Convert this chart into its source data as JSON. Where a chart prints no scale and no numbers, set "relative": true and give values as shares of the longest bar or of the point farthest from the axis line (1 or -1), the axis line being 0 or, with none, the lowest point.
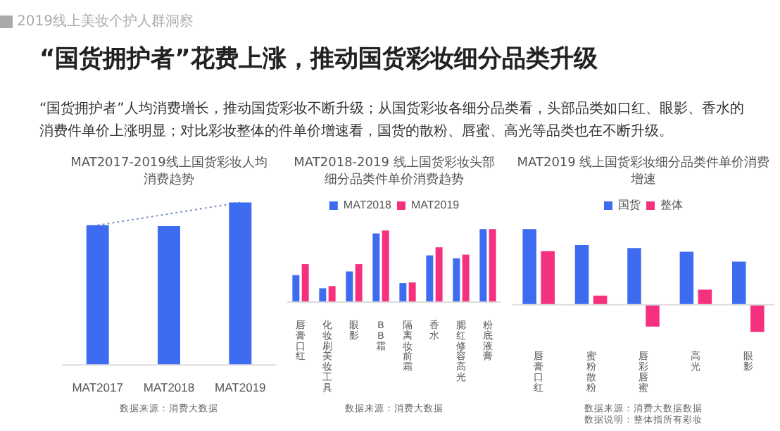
{
  "chart_data": [
    {
      "type": "other",
      "title": "“国货拥护者”花费上涨，推动国货彩妆细分品类升级",
      "subtitle": "“国货拥护者”人均消费增长，推动国货彩妆不断升级；从国货彩妆各细分品类看，头部品类如口红、眼影、香水的消费件单价上涨明显；对比彩妆整体的件单价增速看，国货的散粉、唇蜜、高光等品类也在不断升级。",
      "annotations": [
        "2019线上美妆个护人群洞察"
      ]
    },
    {
      "type": "bar",
      "title": "MAT2017-2019线上国货彩妆人均消费趋势",
      "relative": true,
      "categories": [
        "MAT2017",
        "MAT2018",
        "MAT2019"
      ],
      "series": [
        {
          "type": "bar",
          "color": "#3d6cf0",
          "values": [
            0.86,
            0.855,
            1
          ]
        },
        {
          "type": "line",
          "color": "#7f93c8",
          "line_style": "dotted",
          "marker": "none",
          "values": [
            0.86,
            null,
            1
          ]
        }
      ],
      "annotations": [
        "数据来源：消费大数据"
      ],
      "legend": false
    },
    {
      "type": "bar",
      "title": "MAT2018-2019 线上国货彩妆头部细分品类件单价消费趋势",
      "relative": true,
      "categories": [
        "唇膏口红",
        "化妆刷美妆工具",
        "眼影",
        "BB霜",
        "隔离妆前霜",
        "香水",
        "腮红修容高光",
        "粉底液膏"
      ],
      "series": [
        {
          "name": "MAT2018",
          "color": "#3d6cf0",
          "values": [
            0.37,
            0.19,
            0.42,
            0.94,
            0.26,
            0.64,
            0.6,
            1
          ]
        },
        {
          "name": "MAT2019",
          "color": "#f5317f",
          "values": [
            0.52,
            0.22,
            0.52,
            0.98,
            0.27,
            0.75,
            0.65,
            1
          ]
        }
      ],
      "annotations": [
        "数据来源：消费大数据"
      ],
      "legend": "top"
    },
    {
      "type": "bar",
      "title": "MAT2019 线上国货彩妆细分品类件单价消费增速",
      "relative": true,
      "categories": [
        "唇膏口红",
        "蜜粉散粉",
        "唇彩唇蜜",
        "高光",
        "眼影"
      ],
      "series": [
        {
          "name": "国货",
          "color": "#3d6cf0",
          "values": [
            1,
            0.79,
            0.75,
            0.7,
            0.57
          ]
        },
        {
          "name": "整体",
          "color": "#f5317f",
          "values": [
            0.71,
            0.12,
            -0.29,
            0.2,
            -0.36
          ]
        }
      ],
      "annotations": [
        "数据来源：消费大数据数据",
        "数据说明：整体指所有彩妆"
      ],
      "legend": "top"
    }
  ]
}
